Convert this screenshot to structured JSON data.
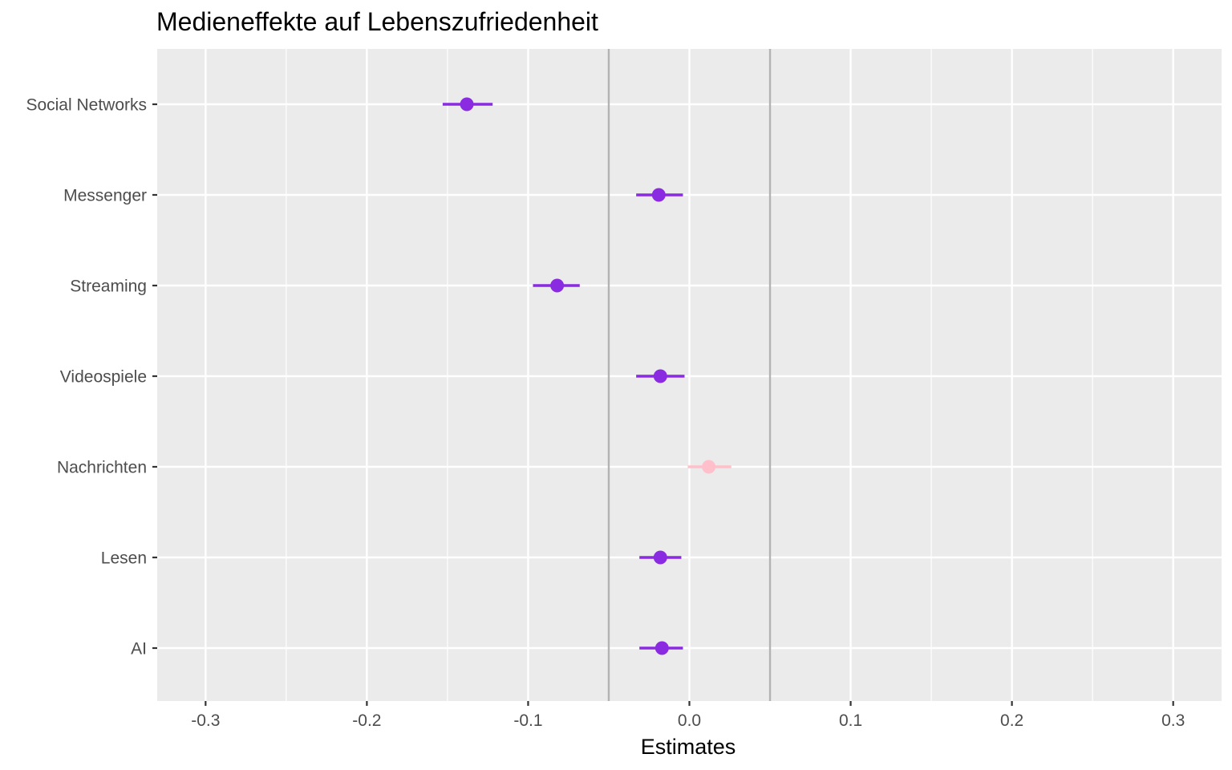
{
  "chart_data": {
    "type": "forest",
    "title": "Medieneffekte auf Lebenszufriedenheit",
    "xlabel": "Estimates",
    "ylabel": "",
    "xlim": [
      -0.33,
      0.33
    ],
    "x_ticks": [
      -0.3,
      -0.2,
      -0.1,
      0.0,
      0.1,
      0.2,
      0.3
    ],
    "x_tick_labels": [
      "-0.3",
      "-0.2",
      "-0.1",
      "0.0",
      "0.1",
      "0.2",
      "0.3"
    ],
    "reference_lines": [
      -0.05,
      0.05
    ],
    "grid": true,
    "legend": "none",
    "colors": {
      "significant": "#8a2be2",
      "not_significant": "#ffc0cb",
      "panel_background": "#ebebeb",
      "grid": "#ffffff",
      "reference_line": "#b3b3b3"
    },
    "terms": [
      {
        "label": "Social Networks",
        "estimate": -0.138,
        "ci_low": -0.153,
        "ci_high": -0.122,
        "color": "#8a2be2"
      },
      {
        "label": "Messenger",
        "estimate": -0.019,
        "ci_low": -0.033,
        "ci_high": -0.004,
        "color": "#8a2be2"
      },
      {
        "label": "Streaming",
        "estimate": -0.082,
        "ci_low": -0.097,
        "ci_high": -0.068,
        "color": "#8a2be2"
      },
      {
        "label": "Videospiele",
        "estimate": -0.018,
        "ci_low": -0.033,
        "ci_high": -0.003,
        "color": "#8a2be2"
      },
      {
        "label": "Nachrichten",
        "estimate": 0.012,
        "ci_low": -0.001,
        "ci_high": 0.026,
        "color": "#ffc0cb"
      },
      {
        "label": "Lesen",
        "estimate": -0.018,
        "ci_low": -0.031,
        "ci_high": -0.005,
        "color": "#8a2be2"
      },
      {
        "label": "AI",
        "estimate": -0.017,
        "ci_low": -0.031,
        "ci_high": -0.004,
        "color": "#8a2be2"
      }
    ]
  }
}
